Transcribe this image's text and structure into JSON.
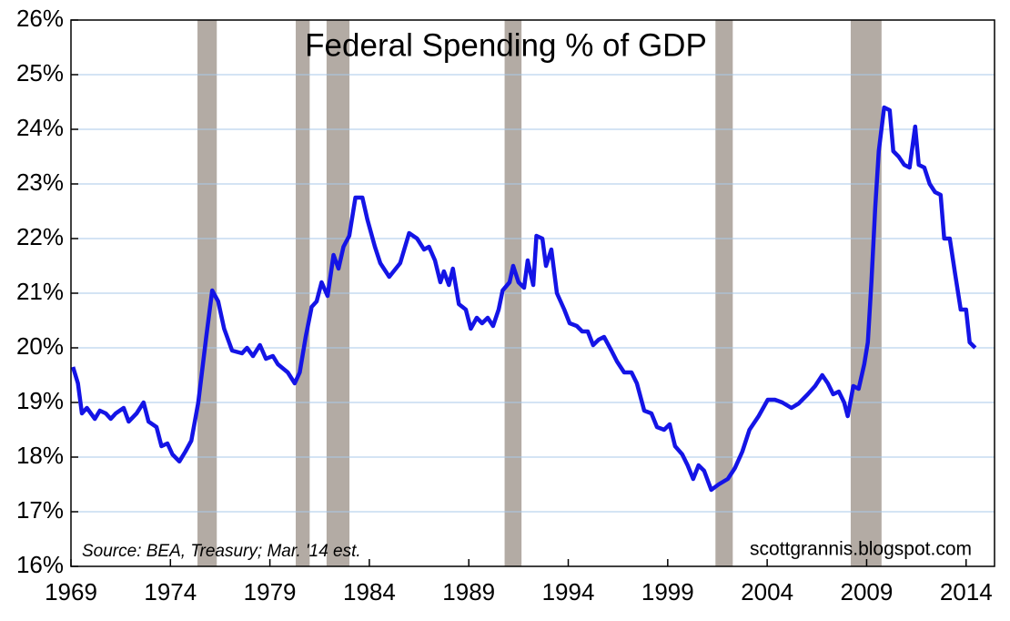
{
  "chart_data": {
    "type": "line",
    "title": "Federal Spending % of GDP",
    "annotations": [
      "Source:  BEA, Treasury; Mar. '14 est.",
      "scottgrannis.blogspot.com"
    ],
    "color": "#1414e6",
    "band_color": "#b3aba4",
    "grid": true,
    "xlim": [
      1969,
      2015.43
    ],
    "ylim": [
      16,
      26
    ],
    "xticks": [
      1969,
      1974,
      1979,
      1984,
      1989,
      1994,
      1999,
      2004,
      2009,
      2014
    ],
    "yticks": [
      {
        "value": 16,
        "label": "16%"
      },
      {
        "value": 17,
        "label": "17%"
      },
      {
        "value": 18,
        "label": "18%"
      },
      {
        "value": 19,
        "label": "19%"
      },
      {
        "value": 20,
        "label": "20%"
      },
      {
        "value": 21,
        "label": "21%"
      },
      {
        "value": 22,
        "label": "22%"
      },
      {
        "value": 23,
        "label": "23%"
      },
      {
        "value": 24,
        "label": "24%"
      },
      {
        "value": 25,
        "label": "25%"
      },
      {
        "value": 26,
        "label": "26%"
      }
    ],
    "shaded_periods": [
      [
        1975.36,
        1976.33
      ],
      [
        1980.3,
        1981.0
      ],
      [
        1981.85,
        1983.0
      ],
      [
        1990.8,
        1991.65
      ],
      [
        2001.4,
        2002.27
      ],
      [
        2008.2,
        2009.75
      ]
    ],
    "x": [
      1969.1,
      1969.35,
      1969.55,
      1969.8,
      1970.2,
      1970.45,
      1970.75,
      1971.0,
      1971.25,
      1971.65,
      1971.9,
      1972.3,
      1972.65,
      1972.9,
      1973.3,
      1973.55,
      1973.85,
      1974.1,
      1974.45,
      1974.75,
      1975.05,
      1975.4,
      1975.8,
      1976.1,
      1976.4,
      1976.7,
      1977.1,
      1977.6,
      1977.85,
      1978.15,
      1978.5,
      1978.8,
      1979.15,
      1979.4,
      1979.9,
      1980.25,
      1980.5,
      1980.8,
      1981.1,
      1981.35,
      1981.6,
      1981.9,
      1982.2,
      1982.45,
      1982.7,
      1982.99,
      1983.3,
      1983.65,
      1983.9,
      1984.28,
      1984.55,
      1985.0,
      1985.55,
      1986.0,
      1986.4,
      1986.75,
      1987.0,
      1987.3,
      1987.57,
      1987.75,
      1988.0,
      1988.2,
      1988.5,
      1988.85,
      1989.1,
      1989.4,
      1989.67,
      1989.95,
      1990.22,
      1990.5,
      1990.7,
      1991.05,
      1991.23,
      1991.5,
      1991.78,
      1991.96,
      1992.24,
      1992.4,
      1992.7,
      1992.88,
      1993.15,
      1993.43,
      1993.8,
      1994.07,
      1994.43,
      1994.7,
      1994.98,
      1995.25,
      1995.53,
      1995.8,
      1996.17,
      1996.45,
      1996.81,
      1997.18,
      1997.45,
      1997.82,
      1998.18,
      1998.46,
      1998.82,
      1999.1,
      1999.37,
      1999.73,
      2000.0,
      2000.28,
      2000.55,
      2000.83,
      2001.19,
      2001.56,
      2002.02,
      2002.38,
      2002.75,
      2003.11,
      2003.57,
      2004.03,
      2004.39,
      2004.76,
      2005.22,
      2005.58,
      2006.04,
      2006.41,
      2006.77,
      2007.05,
      2007.32,
      2007.6,
      2007.87,
      2008.05,
      2008.33,
      2008.6,
      2008.88,
      2009.06,
      2009.24,
      2009.43,
      2009.61,
      2009.88,
      2010.16,
      2010.34,
      2010.61,
      2010.89,
      2011.16,
      2011.44,
      2011.62,
      2011.9,
      2012.17,
      2012.44,
      2012.72,
      2012.9,
      2013.18,
      2013.45,
      2013.73,
      2014.0,
      2014.18,
      2014.46
    ],
    "values": [
      19.65,
      19.35,
      18.8,
      18.9,
      18.7,
      18.85,
      18.8,
      18.7,
      18.8,
      18.9,
      18.65,
      18.8,
      19.0,
      18.65,
      18.55,
      18.2,
      18.25,
      18.05,
      17.92,
      18.1,
      18.3,
      19.0,
      20.2,
      21.05,
      20.85,
      20.35,
      19.95,
      19.9,
      20.0,
      19.85,
      20.05,
      19.8,
      19.85,
      19.7,
      19.55,
      19.35,
      19.55,
      20.2,
      20.75,
      20.85,
      21.2,
      20.95,
      21.7,
      21.45,
      21.85,
      22.05,
      22.75,
      22.75,
      22.35,
      21.85,
      21.55,
      21.3,
      21.55,
      22.1,
      22.0,
      21.8,
      21.85,
      21.6,
      21.2,
      21.4,
      21.15,
      21.45,
      20.8,
      20.7,
      20.35,
      20.55,
      20.45,
      20.55,
      20.4,
      20.7,
      21.05,
      21.2,
      21.5,
      21.2,
      21.1,
      21.6,
      21.15,
      22.05,
      22.0,
      21.5,
      21.8,
      21.0,
      20.7,
      20.45,
      20.4,
      20.3,
      20.3,
      20.05,
      20.15,
      20.2,
      19.95,
      19.75,
      19.55,
      19.55,
      19.35,
      18.85,
      18.8,
      18.55,
      18.5,
      18.6,
      18.2,
      18.05,
      17.85,
      17.6,
      17.85,
      17.75,
      17.4,
      17.5,
      17.6,
      17.8,
      18.1,
      18.5,
      18.75,
      19.05,
      19.05,
      19.0,
      18.9,
      18.98,
      19.15,
      19.3,
      19.5,
      19.35,
      19.15,
      19.2,
      19.0,
      18.75,
      19.3,
      19.25,
      19.7,
      20.1,
      21.2,
      22.55,
      23.6,
      24.4,
      24.35,
      23.6,
      23.5,
      23.35,
      23.3,
      24.05,
      23.35,
      23.3,
      23.0,
      22.85,
      22.8,
      22.0,
      22.0,
      21.35,
      20.7,
      20.7,
      20.1,
      20.0
    ]
  }
}
